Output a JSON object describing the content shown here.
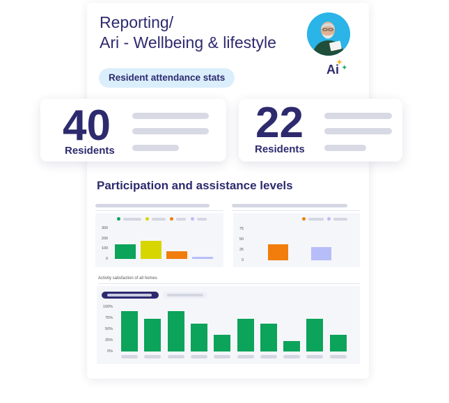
{
  "header": {
    "title_line1": "Reporting/",
    "title_line2": "Ari - Wellbeing & lifestyle",
    "badge": "Resident attendance stats",
    "ai_logo": "Ai"
  },
  "stats": [
    {
      "value": "40",
      "label": "Residents"
    },
    {
      "value": "22",
      "label": "Residents"
    }
  ],
  "section_title": "Participation and assistance levels",
  "colors": {
    "green": "#0ca35a",
    "yellow": "#d7d600",
    "orange": "#f07d0c",
    "lavender": "#b7bdf8",
    "navy": "#2d2a6e"
  },
  "chart_data": [
    {
      "type": "bar",
      "y_ticks": [
        "300",
        "200",
        "100",
        "0"
      ],
      "ylim": [
        0,
        300
      ],
      "values": [
        145,
        180,
        75,
        20
      ],
      "colors": [
        "#0ca35a",
        "#d7d600",
        "#f07d0c",
        "#b7bdf8"
      ]
    },
    {
      "type": "bar",
      "y_ticks": [
        "75",
        "50",
        "25",
        "0"
      ],
      "ylim": [
        0,
        75
      ],
      "values": [
        38,
        31
      ],
      "colors": [
        "#f07d0c",
        "#b7bdf8"
      ]
    },
    {
      "type": "bar",
      "title": "Activity satisfaction of all homes",
      "y_ticks": [
        "100%",
        "75%",
        "50%",
        "25%",
        "0%"
      ],
      "ylim": [
        0,
        100
      ],
      "values": [
        91,
        74,
        91,
        62,
        37,
        73,
        62,
        24,
        74,
        37
      ],
      "color": "#0ca35a"
    }
  ]
}
